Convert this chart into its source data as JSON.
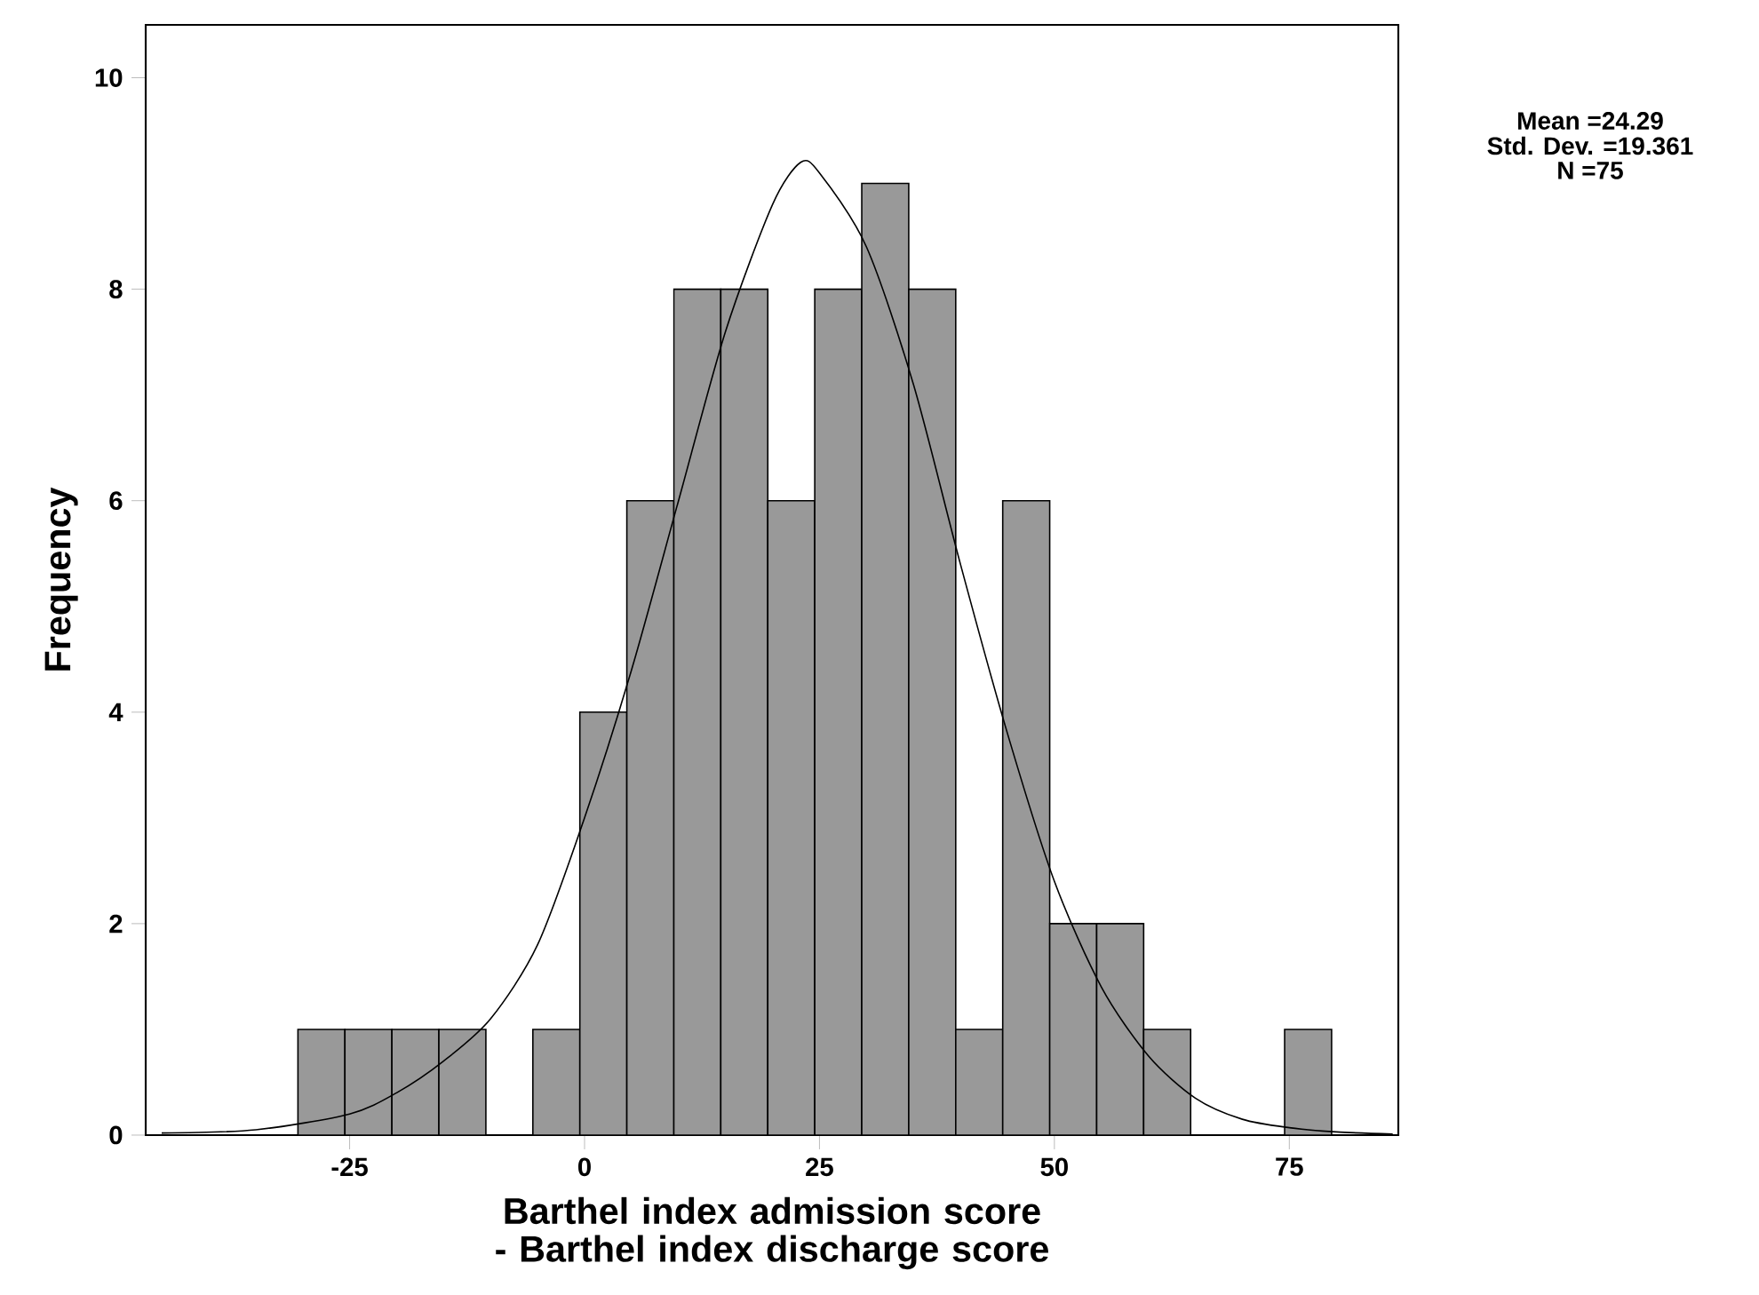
{
  "chart_data": {
    "type": "histogram",
    "xlabel": "Barthel index admission score - Barthel index discharge score",
    "ylabel": "Frequency",
    "annotations": [
      "Mean =24.29",
      "Std. Dev. =19.361",
      "N =75"
    ],
    "bins": [
      -30.5,
      -25.5,
      -20.5,
      -15.5,
      -10.5,
      -5.5,
      -0.5,
      4.5,
      9.5,
      14.5,
      19.5,
      24.5,
      29.5,
      34.5,
      39.5,
      44.5,
      49.5,
      54.5,
      59.5,
      64.5,
      69.5,
      74.5,
      79.5
    ],
    "values": [
      1,
      1,
      1,
      1,
      0,
      1,
      4,
      6,
      8,
      8,
      6,
      8,
      9,
      8,
      1,
      6,
      2,
      2,
      1,
      0,
      0,
      1
    ],
    "color": "#999999",
    "series": [
      {
        "type": "line",
        "color": "#000000",
        "x": [
          -45,
          -35,
          -25,
          -20,
          -15,
          -10,
          -5,
          0,
          5,
          10,
          15,
          20,
          23,
          25,
          30,
          35,
          40,
          45,
          50,
          55,
          60,
          65,
          70,
          75,
          80,
          86
        ],
        "values": [
          0.02,
          0.05,
          0.2,
          0.4,
          0.7,
          1.1,
          1.8,
          3.0,
          4.4,
          6.0,
          7.6,
          8.8,
          9.2,
          9.1,
          8.4,
          7.1,
          5.4,
          3.8,
          2.4,
          1.4,
          0.75,
          0.35,
          0.15,
          0.07,
          0.03,
          0.01
        ]
      }
    ],
    "xlim": [
      -46.7,
      86.6
    ],
    "ylim": [
      0,
      10.5
    ],
    "xticks": [
      -25,
      0,
      25,
      50,
      75
    ],
    "yticks": [
      0,
      2,
      4,
      6,
      8,
      10
    ],
    "grid": false
  }
}
